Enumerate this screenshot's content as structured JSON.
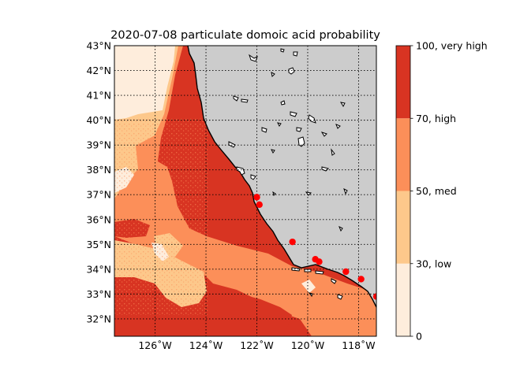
{
  "title": "2020-07-08 particulate domoic acid probability",
  "map": {
    "lon_range": [
      -127.6,
      -117.3
    ],
    "lat_range": [
      31.3,
      43.0
    ],
    "gridlines": true,
    "land_color": "#cccccc",
    "coastline_color": "#000000",
    "lat_ticks": [
      "32°N",
      "33°N",
      "34°N",
      "35°N",
      "36°N",
      "37°N",
      "38°N",
      "39°N",
      "40°N",
      "41°N",
      "42°N",
      "43°N"
    ],
    "lat_values": [
      32,
      33,
      34,
      35,
      36,
      37,
      38,
      39,
      40,
      41,
      42,
      43
    ],
    "lon_ticks": [
      "126˚W",
      "124˚W",
      "122˚W",
      "120˚W",
      "118˚W"
    ],
    "lon_values": [
      -126,
      -124,
      -122,
      -120,
      -118
    ]
  },
  "colorbar": {
    "levels": [
      0,
      30,
      50,
      70,
      100
    ],
    "labels": [
      "0",
      "30, low",
      "50, med",
      "70, high",
      "100, very high"
    ],
    "colors": [
      "#feeddc",
      "#fdc88b",
      "#fc8f59",
      "#d83422"
    ]
  },
  "stations": [
    {
      "lon": -122.0,
      "lat": 36.9
    },
    {
      "lon": -121.9,
      "lat": 36.6
    },
    {
      "lon": -120.6,
      "lat": 35.1
    },
    {
      "lon": -119.7,
      "lat": 34.4
    },
    {
      "lon": -119.55,
      "lat": 34.3
    },
    {
      "lon": -118.5,
      "lat": 33.9
    },
    {
      "lon": -117.9,
      "lat": 33.6
    },
    {
      "lon": -117.3,
      "lat": 32.9
    }
  ],
  "station_color": "#ff0000"
}
